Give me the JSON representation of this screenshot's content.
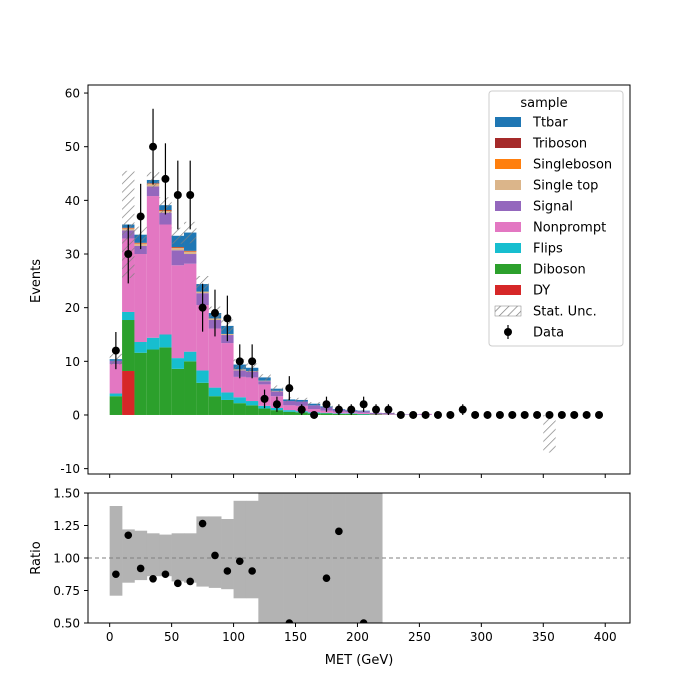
{
  "chart_data": {
    "type": "stacked-histogram",
    "xlabel": "MET (GeV)",
    "ylabel_top": "Events",
    "ylabel_bottom": "Ratio",
    "bin_edges": [
      0,
      10,
      20,
      30,
      40,
      50,
      60,
      70,
      80,
      90,
      100,
      110,
      120,
      130,
      140,
      150,
      160,
      170,
      180,
      190,
      200,
      210,
      220,
      230,
      240,
      250,
      260,
      270,
      280,
      290,
      300,
      310,
      320,
      330,
      340,
      350,
      360,
      370,
      380,
      390,
      400
    ],
    "xlim": [
      -17.5,
      420
    ],
    "ylim_top": [
      -11,
      61.5
    ],
    "ylim_bottom": [
      0.5,
      1.5
    ],
    "xticks": [
      0,
      50,
      100,
      150,
      200,
      250,
      300,
      350,
      400
    ],
    "yticks_top": [
      -10,
      0,
      10,
      20,
      30,
      40,
      50,
      60
    ],
    "yticks_bottom": [
      0.5,
      0.75,
      1.0,
      1.25,
      1.5
    ],
    "ytick_labels_bottom": [
      "0.50",
      "0.75",
      "1.00",
      "1.25",
      "1.50"
    ],
    "legend": {
      "title": "sample",
      "placement": "upper right",
      "entries": [
        "Ttbar",
        "Triboson",
        "Singleboson",
        "Single top",
        "Signal",
        "Nonprompt",
        "Flips",
        "Diboson",
        "DY",
        "Stat. Unc.",
        "Data"
      ]
    },
    "colors": {
      "DY": "#d62728",
      "Diboson": "#2ca02c",
      "Flips": "#17becf",
      "Nonprompt": "#e377c2",
      "Signal": "#9467bd",
      "Single top": "#dbb58a",
      "Singleboson": "#ff7f0e",
      "Triboson": "#a52a2a",
      "Ttbar": "#1f77b4",
      "band": "#b3b3b3"
    },
    "series": [
      {
        "name": "DY",
        "values": [
          0,
          8.2,
          0,
          0,
          0,
          0,
          0,
          0,
          0,
          0,
          0,
          0,
          0,
          0,
          0,
          0,
          0,
          0,
          0,
          0,
          0,
          0,
          0,
          0,
          0,
          0,
          0,
          0,
          0,
          0,
          0,
          0,
          0,
          0,
          0,
          0,
          0,
          0,
          0,
          0
        ]
      },
      {
        "name": "Diboson",
        "values": [
          3.5,
          9.5,
          11.6,
          12.2,
          12.6,
          8.6,
          10.0,
          6.0,
          3.5,
          2.8,
          2.2,
          1.8,
          1.2,
          0.9,
          0.6,
          0.5,
          0.3,
          0.3,
          0.2,
          0.2,
          0.1,
          0.1,
          0.05,
          0,
          0,
          0,
          0,
          0,
          0,
          0,
          0,
          0,
          0,
          0,
          0,
          0,
          0,
          0,
          0,
          0
        ]
      },
      {
        "name": "Flips",
        "values": [
          0.5,
          1.5,
          2.0,
          2.2,
          2.4,
          2.0,
          1.8,
          2.3,
          1.6,
          1.4,
          1.1,
          0.8,
          0.5,
          0.4,
          0.3,
          0.2,
          0.2,
          0.1,
          0.1,
          0.1,
          0.1,
          0,
          0,
          0,
          0,
          0,
          0,
          0,
          0,
          0,
          0,
          0,
          0,
          0,
          0,
          0,
          0,
          0,
          0,
          0
        ]
      },
      {
        "name": "Nonprompt",
        "values": [
          5.5,
          13.7,
          16.4,
          26.4,
          20.5,
          17.3,
          16.4,
          12.2,
          11.0,
          9.2,
          3.8,
          4.4,
          4.0,
          2.2,
          0.9,
          1.0,
          0.6,
          0.4,
          0.3,
          0.2,
          0.2,
          0.1,
          0.1,
          0,
          0,
          0.1,
          0,
          0,
          0,
          0,
          0,
          0,
          0,
          0,
          0,
          0,
          0,
          0,
          0,
          0
        ]
      },
      {
        "name": "Signal",
        "values": [
          0.6,
          1.5,
          1.5,
          1.8,
          2.2,
          2.8,
          1.8,
          2.2,
          1.6,
          1.5,
          1.2,
          1.1,
          0.6,
          0.9,
          0.8,
          0.8,
          0.7,
          0.6,
          0.4,
          0.3,
          0.3,
          0.2,
          0.2,
          0.1,
          0.1,
          0.1,
          0,
          0,
          0,
          0,
          0,
          0,
          0,
          0,
          0,
          0,
          0,
          0,
          0,
          0
        ]
      },
      {
        "name": "Single top",
        "values": [
          0,
          0.3,
          0.4,
          0.4,
          0.3,
          0.4,
          0.4,
          0.3,
          0.3,
          0.2,
          0.2,
          0.1,
          0.1,
          0.1,
          0,
          0,
          0,
          0,
          0,
          0,
          0,
          0,
          0,
          0,
          0,
          0,
          0,
          0,
          0,
          0,
          0,
          0,
          0,
          0,
          0,
          0,
          0,
          0,
          0,
          0
        ]
      },
      {
        "name": "Singleboson",
        "values": [
          0,
          0.1,
          0.1,
          0.1,
          0.1,
          0.1,
          0.1,
          0,
          0,
          0,
          0,
          0,
          0,
          0,
          0,
          0,
          0,
          0,
          0,
          0,
          0,
          0,
          0,
          0,
          0,
          0,
          0,
          0,
          0,
          0,
          0,
          0,
          0,
          0,
          0,
          0,
          0,
          0,
          0,
          0
        ]
      },
      {
        "name": "Triboson",
        "values": [
          0,
          0.1,
          0.1,
          0.1,
          0.1,
          0.1,
          0.1,
          0,
          0,
          0,
          0,
          0,
          0,
          0,
          0,
          0,
          0,
          0,
          0,
          0,
          0,
          0,
          0,
          0,
          0,
          0,
          0,
          0,
          0,
          0,
          0,
          0,
          0,
          0,
          0,
          0,
          0,
          0,
          0,
          0
        ]
      },
      {
        "name": "Ttbar",
        "values": [
          0.3,
          0.6,
          1.5,
          0.6,
          0.9,
          2.1,
          3.4,
          1.4,
          1.0,
          1.5,
          0.9,
          0.6,
          0.6,
          0.4,
          0.3,
          0.3,
          0.3,
          0.2,
          0.1,
          0.1,
          0.1,
          0,
          0,
          0,
          0,
          0,
          0,
          0,
          0,
          0,
          0,
          0,
          0,
          0,
          0,
          0,
          0,
          0,
          0,
          0
        ]
      }
    ],
    "stat_unc": [
      1.0,
      10.0,
      1.5,
      1.5,
      1.5,
      1.5,
      2.0,
      1.5,
      1.2,
      1.2,
      1.0,
      0.8,
      0.6,
      0.6,
      0.4,
      0.4,
      0.3,
      0.2,
      0.2,
      0.1,
      0.1,
      0.1,
      0.1,
      0,
      0,
      0.1,
      0,
      0,
      0,
      0,
      0,
      0,
      0,
      0,
      0,
      0,
      0,
      0,
      0,
      0
    ],
    "special_unc_bins": [
      {
        "bin": 35,
        "low": -7.0,
        "high": 0
      }
    ],
    "data": {
      "x": [
        5,
        15,
        25,
        35,
        45,
        55,
        65,
        75,
        85,
        95,
        105,
        115,
        125,
        135,
        145,
        155,
        165,
        175,
        185,
        195,
        205,
        215,
        225,
        235,
        245,
        255,
        265,
        275,
        285,
        295,
        305,
        315,
        325,
        335,
        345,
        355,
        365,
        375,
        385,
        395
      ],
      "y": [
        12,
        30,
        37,
        50,
        44,
        41,
        41,
        20,
        19,
        18,
        10,
        10,
        3,
        2,
        5,
        1,
        0,
        2,
        1,
        1,
        2,
        1,
        1,
        0,
        0,
        0,
        0,
        0,
        1,
        0,
        0,
        0,
        0,
        0,
        0,
        0,
        0,
        0,
        0,
        0
      ]
    },
    "ratio": {
      "x": [
        5,
        15,
        25,
        35,
        45,
        55,
        65,
        75,
        85,
        95,
        105,
        115,
        145,
        175,
        185,
        205
      ],
      "y": [
        0.875,
        1.175,
        0.92,
        0.84,
        0.875,
        0.805,
        0.82,
        1.265,
        1.02,
        0.9,
        0.975,
        0.9,
        0.5,
        0.845,
        1.205,
        0.5
      ]
    },
    "ratio_band": {
      "low": [
        0.71,
        0.81,
        0.83,
        0.86,
        0.86,
        0.82,
        0.81,
        0.78,
        0.77,
        0.76,
        0.69,
        0.69,
        0.4,
        0.4,
        0.5,
        0.4,
        0.4,
        0.4,
        0.4,
        0.4,
        0.4,
        0.4,
        null,
        null,
        null,
        null,
        null,
        null,
        null,
        null,
        null,
        null,
        null,
        null,
        null,
        null,
        null,
        null,
        null,
        null
      ],
      "high": [
        1.4,
        1.22,
        1.21,
        1.19,
        1.18,
        1.19,
        1.19,
        1.32,
        1.32,
        1.3,
        1.44,
        1.44,
        1.6,
        1.6,
        1.6,
        null,
        null,
        1.6,
        1.6,
        1.6,
        1.6,
        1.6,
        null,
        null,
        null,
        null,
        null,
        null,
        null,
        null,
        null,
        null,
        null,
        null,
        null,
        null,
        null,
        null,
        null,
        null
      ]
    },
    "reference_line": 1.0
  }
}
